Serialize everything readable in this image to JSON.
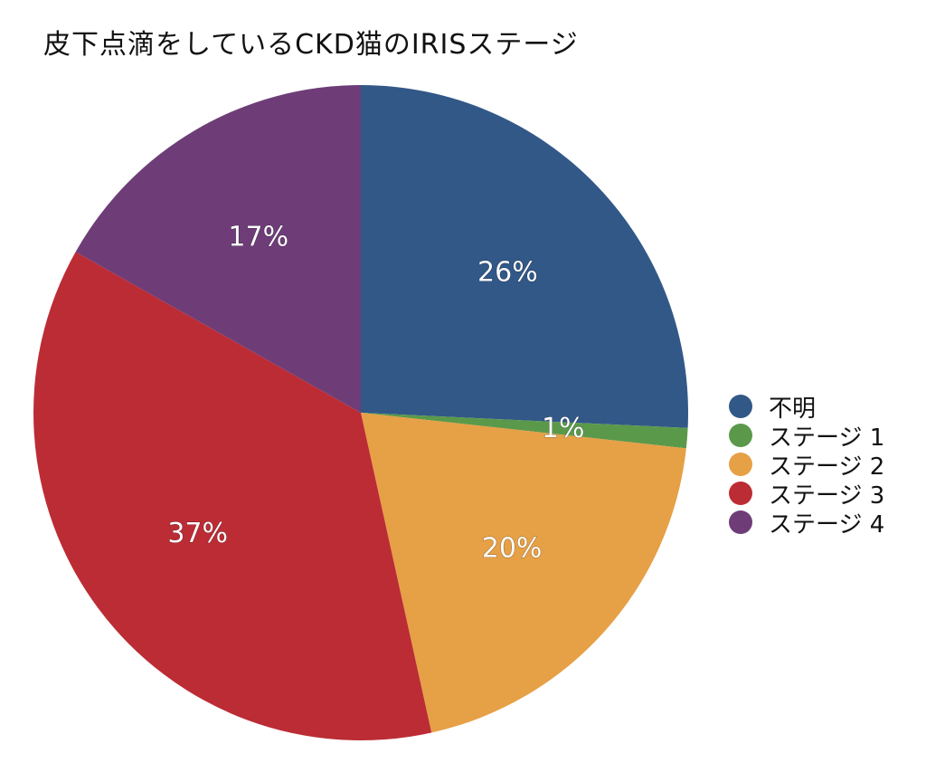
{
  "chart_data": {
    "type": "pie",
    "title": "皮下点滴をしているCKD猫のIRISステージ",
    "slices": [
      {
        "label": "不明",
        "value": 26,
        "display": "26%",
        "color": "#325888"
      },
      {
        "label": "ステージ 1",
        "value": 1,
        "display": "1%",
        "color": "#5b994a"
      },
      {
        "label": "ステージ 2",
        "value": 20,
        "display": "20%",
        "color": "#e6a046"
      },
      {
        "label": "ステージ 3",
        "value": 37,
        "display": "37%",
        "color": "#bc2c35"
      },
      {
        "label": "ステージ 4",
        "value": 17,
        "display": "17%",
        "color": "#6e3d78"
      }
    ],
    "legend_position": "right"
  }
}
